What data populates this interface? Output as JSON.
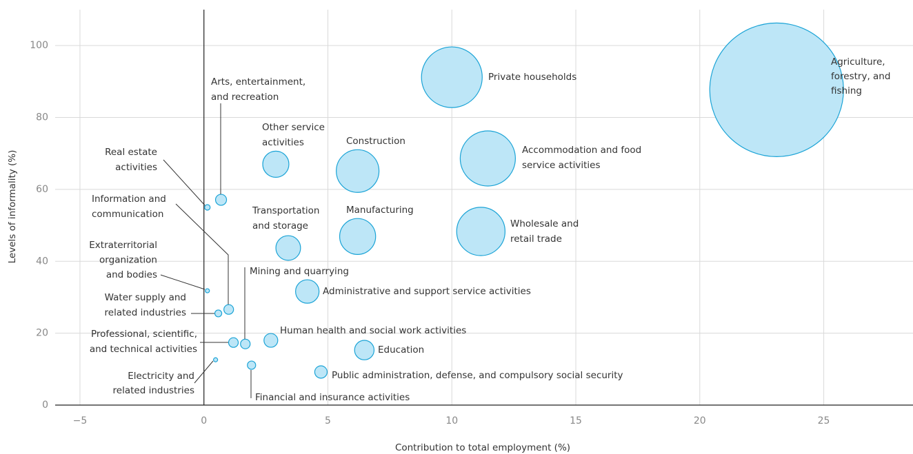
{
  "chart_data": {
    "type": "scatter",
    "xlabel": "Contribution to total employment (%)",
    "ylabel": "Levels of informality (%)",
    "xlim": [
      -6,
      28.6
    ],
    "ylim": [
      0,
      110
    ],
    "xticks": [
      {
        "value": -5,
        "label": "−5"
      },
      0,
      5,
      10,
      15,
      20,
      25
    ],
    "yticks": [
      0,
      20,
      40,
      60,
      80,
      100
    ],
    "grid": true,
    "color": "#bde6f7",
    "edgecolor": "#1aa3d6",
    "labels": [
      [
        "Agriculture,",
        "forestry, and",
        "fishing"
      ],
      [
        "Private households"
      ],
      [
        "Accommodation and food",
        "service activities"
      ],
      [
        "Wholesale and",
        "retail trade"
      ],
      [
        "Construction"
      ],
      [
        "Manufacturing"
      ],
      [
        "Other service",
        "activities"
      ],
      [
        "Transportation",
        "and storage"
      ],
      [
        "Administrative and support service activities"
      ],
      [
        "Education"
      ],
      [
        "Human health and social work activities"
      ],
      [
        "Public administration, defense, and compulsory social security"
      ],
      [
        "Arts, entertainment,",
        "and recreation"
      ],
      [
        "Information and",
        "communication"
      ],
      [
        "Mining and quarrying"
      ],
      [
        "Professional, scientific,",
        "and technical activities"
      ],
      [
        "Financial and insurance activities"
      ],
      [
        "Water supply and",
        "related industries"
      ],
      [
        "Real estate",
        "activities"
      ],
      [
        "Extraterritorial",
        "organization",
        "and bodies"
      ],
      [
        "Electricity and",
        "related industries"
      ]
    ],
    "x": [
      23.1,
      10.0,
      11.45,
      11.17,
      6.2,
      6.2,
      2.9,
      3.4,
      4.17,
      6.47,
      2.7,
      4.72,
      0.69,
      1.0,
      1.67,
      1.19,
      1.92,
      0.58,
      0.14,
      0.14,
      0.47
    ],
    "values": [
      87.7,
      91.2,
      68.6,
      48.3,
      65.1,
      46.9,
      67.0,
      43.7,
      31.6,
      15.3,
      18.0,
      9.2,
      57.1,
      26.6,
      17.0,
      17.4,
      11.1,
      25.5,
      55.0,
      31.8,
      12.6
    ],
    "sizes": [
      94.1,
      19.4,
      16.0,
      12.3,
      9.6,
      6.8,
      3.6,
      3.2,
      2.9,
      2.0,
      1.0,
      0.81,
      0.64,
      0.49,
      0.49,
      0.49,
      0.36,
      0.25,
      0.16,
      0.09,
      0.09
    ]
  }
}
